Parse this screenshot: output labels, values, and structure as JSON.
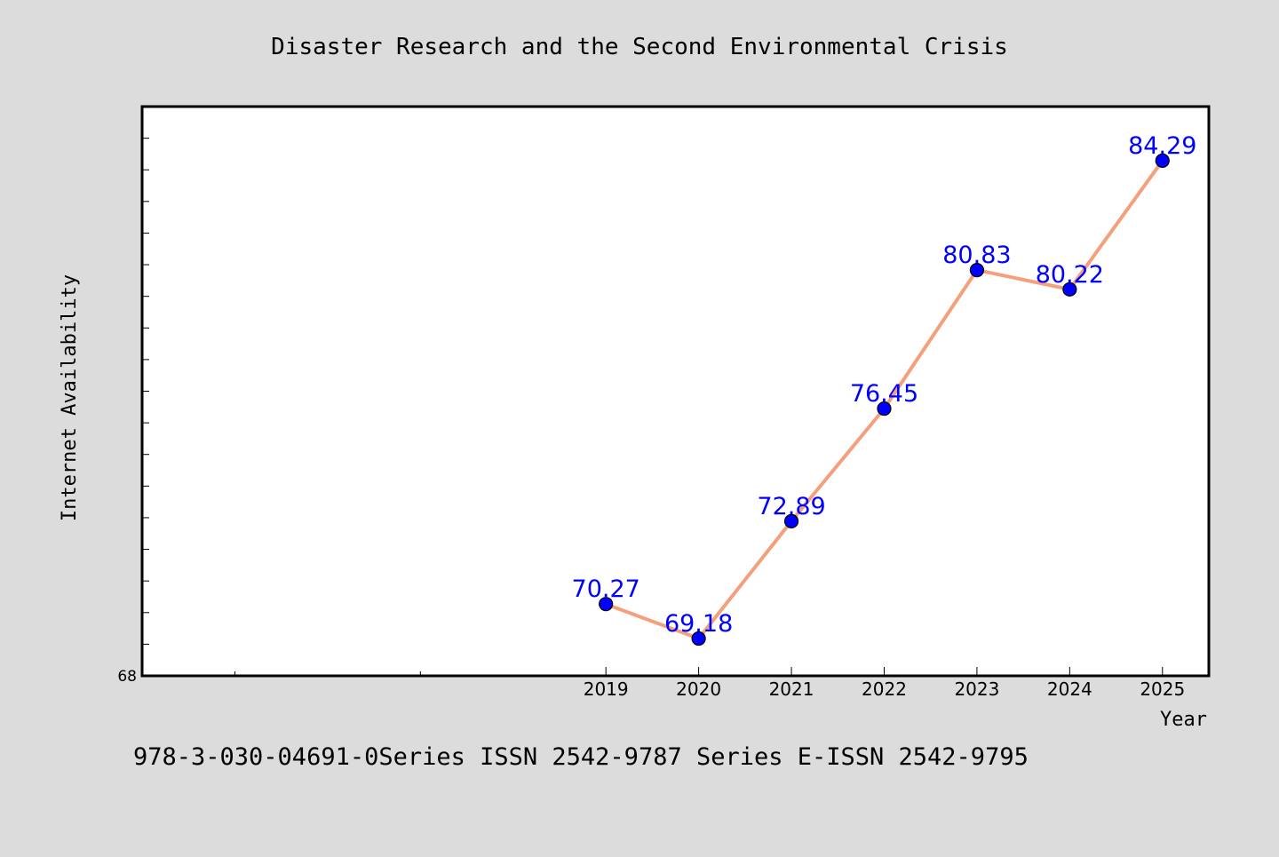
{
  "chart_data": {
    "type": "line",
    "title": "Disaster Research and the Second Environmental Crisis",
    "xlabel": "Year",
    "ylabel": "Internet Availability",
    "x": [
      "2019",
      "2020",
      "2021",
      "2022",
      "2023",
      "2024",
      "2025"
    ],
    "series": [
      {
        "values": [
          70.27,
          69.18,
          72.89,
          76.45,
          80.83,
          80.22,
          84.29
        ]
      }
    ],
    "data_labels": [
      "70.27",
      "69.18",
      "72.89",
      "76.45",
      "80.83",
      "80.22",
      "84.29"
    ],
    "y_tick_labels": [
      "68"
    ],
    "ylim": [
      68,
      86
    ],
    "x_domain": [
      2014,
      2025.5
    ],
    "grid": false,
    "legend": "none",
    "line_color": "#f4a07c",
    "marker_color": "#0000ff",
    "label_color": "#0000ff",
    "footer": "978-3-030-04691-0Series ISSN 2542-9787 Series E-ISSN 2542-9795"
  }
}
